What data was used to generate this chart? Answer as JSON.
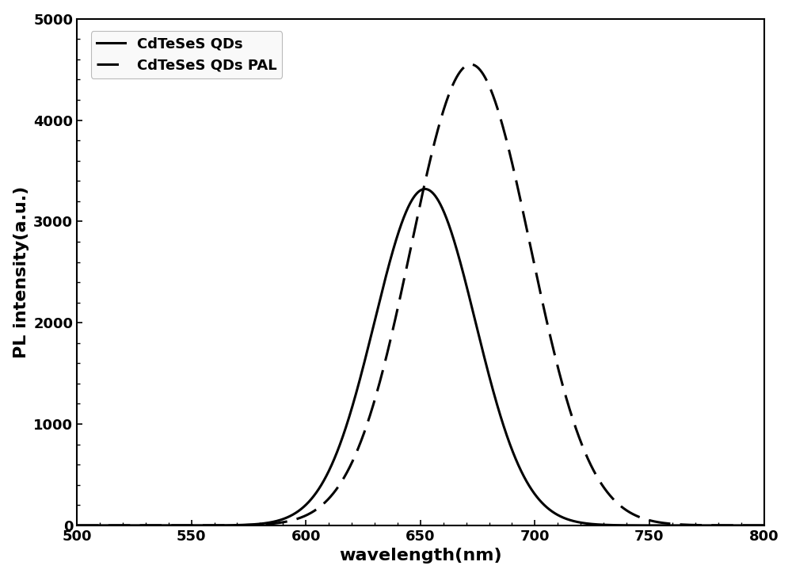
{
  "title": "",
  "xlabel": "wavelength(nm)",
  "ylabel": "PL intensity(a.u.)",
  "xlim": [
    500,
    800
  ],
  "ylim": [
    0,
    5000
  ],
  "xticks": [
    500,
    550,
    600,
    650,
    700,
    750,
    800
  ],
  "yticks": [
    0,
    1000,
    2000,
    3000,
    4000,
    5000
  ],
  "line1_label": "CdTeSeS QDs",
  "line1_peak": 652,
  "line1_amplitude": 3320,
  "line1_sigma": 22,
  "line2_label": "CdTeSeS QDs PAL",
  "line2_peak": 672,
  "line2_amplitude": 4550,
  "line2_sigma": 26,
  "line_color": "#000000",
  "line_width": 2.2,
  "background_color": "#ffffff",
  "legend_fontsize": 13,
  "axis_label_fontsize": 16,
  "tick_fontsize": 13,
  "legend_loc": "upper left",
  "legend_frameon": true
}
